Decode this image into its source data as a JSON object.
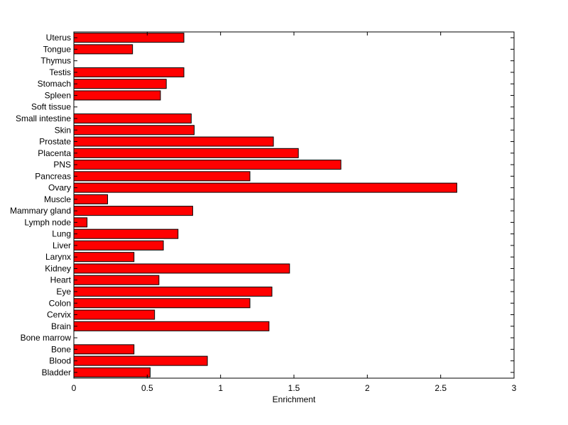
{
  "chart_data": {
    "type": "bar",
    "orientation": "horizontal",
    "title": "",
    "xlabel": "Enrichment",
    "ylabel": "",
    "xlim": [
      0,
      3
    ],
    "x_ticks": [
      0,
      0.5,
      1,
      1.5,
      2,
      2.5,
      3
    ],
    "x_tick_labels": [
      "0",
      "0.5",
      "1",
      "1.5",
      "2",
      "2.5",
      "3"
    ],
    "grid": false,
    "legend": "none",
    "bar_color": "#ff0000",
    "categories": [
      "Bladder",
      "Blood",
      "Bone",
      "Bone marrow",
      "Brain",
      "Cervix",
      "Colon",
      "Eye",
      "Heart",
      "Kidney",
      "Larynx",
      "Liver",
      "Lung",
      "Lymph node",
      "Mammary gland",
      "Muscle",
      "Ovary",
      "Pancreas",
      "PNS",
      "Placenta",
      "Prostate",
      "Skin",
      "Small intestine",
      "Soft tissue",
      "Spleen",
      "Stomach",
      "Testis",
      "Thymus",
      "Tongue",
      "Uterus"
    ],
    "values": [
      0.52,
      0.91,
      0.41,
      0,
      1.33,
      0.55,
      1.2,
      1.35,
      0.58,
      1.47,
      0.41,
      0.61,
      0.71,
      0.09,
      0.81,
      0.23,
      2.61,
      1.2,
      1.82,
      1.53,
      1.36,
      0.82,
      0.8,
      0,
      0.59,
      0.63,
      0.75,
      0,
      0.4,
      0.75
    ]
  }
}
